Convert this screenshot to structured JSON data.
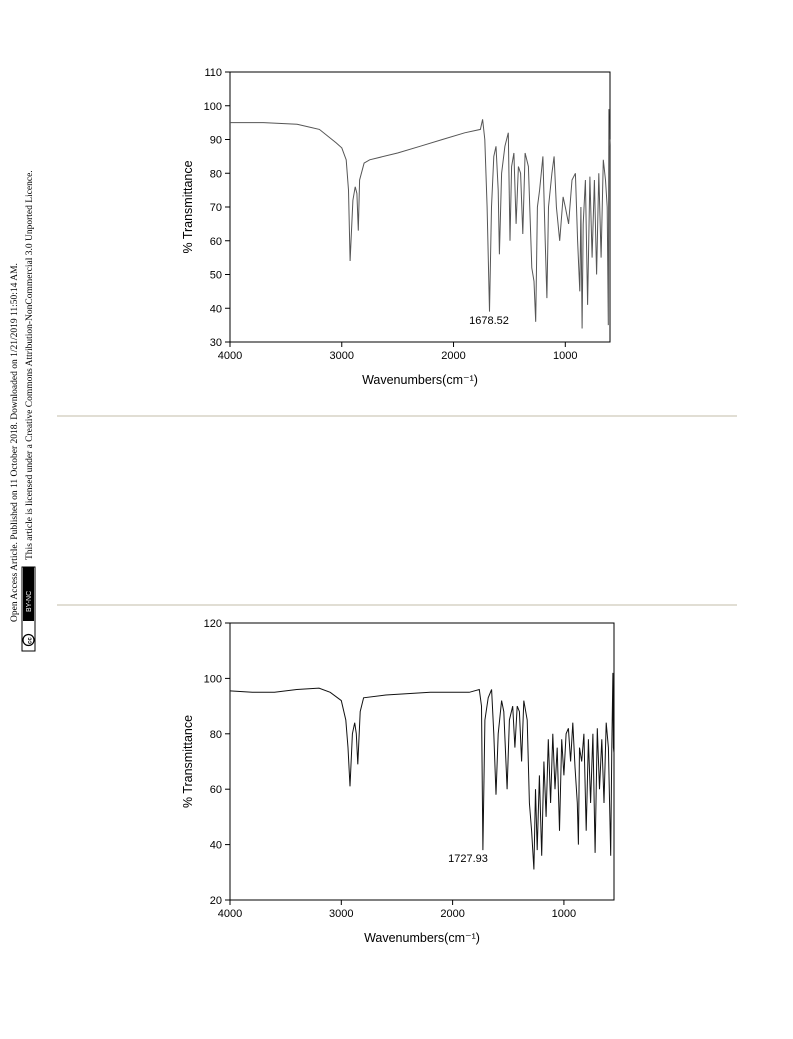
{
  "sidebar": {
    "line1": "Open Access Article. Published on 11 October 2018. Downloaded on 1/21/2019 11:50:14 AM.",
    "line2": "This article is licensed under a Creative Commons Attribution-NonCommercial 3.0 Unported Licence.",
    "badge": "BY-NC"
  },
  "chart_data": [
    {
      "type": "line",
      "xlabel": "Wavenumbers(cm⁻¹)",
      "ylabel": "% Transmittance",
      "annotation": "1678.52",
      "color": "#555555",
      "xlim": [
        4000,
        600
      ],
      "xticks": [
        4000,
        3000,
        2000,
        1000
      ],
      "ylim": [
        30,
        110
      ],
      "yticks": [
        30,
        40,
        50,
        60,
        70,
        80,
        90,
        100,
        110
      ],
      "x": [
        4000,
        3700,
        3400,
        3200,
        3050,
        3000,
        2960,
        2940,
        2925,
        2900,
        2880,
        2865,
        2852,
        2840,
        2800,
        2750,
        2500,
        2300,
        2100,
        1900,
        1760,
        1740,
        1720,
        1700,
        1678.52,
        1660,
        1640,
        1620,
        1600,
        1590,
        1570,
        1540,
        1510,
        1495,
        1480,
        1460,
        1440,
        1420,
        1400,
        1380,
        1360,
        1330,
        1300,
        1280,
        1265,
        1250,
        1230,
        1200,
        1180,
        1165,
        1150,
        1120,
        1100,
        1080,
        1050,
        1020,
        1000,
        970,
        940,
        910,
        890,
        870,
        860,
        850,
        840,
        820,
        800,
        780,
        760,
        740,
        720,
        700,
        680,
        660,
        640,
        625,
        615,
        610,
        605,
        600
      ],
      "values": [
        95,
        95,
        94.5,
        93,
        89,
        87.5,
        84,
        75,
        54,
        72,
        76,
        74,
        63,
        78,
        83,
        84,
        86,
        88,
        90,
        92,
        93,
        96,
        90,
        70,
        39,
        70,
        85,
        88,
        75,
        56,
        80,
        88,
        92,
        60,
        82,
        86,
        65,
        82,
        80,
        62,
        86,
        82,
        52,
        48,
        36,
        70,
        75,
        85,
        60,
        43,
        70,
        80,
        85,
        70,
        60,
        73,
        70,
        65,
        78,
        80,
        60,
        45,
        70,
        34,
        65,
        78,
        41,
        79,
        55,
        78,
        50,
        80,
        55,
        84,
        78,
        70,
        35,
        99,
        88,
        90
      ]
    },
    {
      "type": "line",
      "xlabel": "Wavenumbers(cm⁻¹)",
      "ylabel": "% Transmittance",
      "annotation": "1727.93",
      "color": "#111111",
      "xlim": [
        4000,
        550
      ],
      "xticks": [
        4000,
        3000,
        2000,
        1000
      ],
      "ylim": [
        20,
        120
      ],
      "yticks": [
        20,
        40,
        60,
        80,
        100,
        120
      ],
      "x": [
        4000,
        3800,
        3600,
        3400,
        3200,
        3100,
        3000,
        2960,
        2940,
        2922,
        2900,
        2880,
        2865,
        2852,
        2830,
        2800,
        2600,
        2400,
        2200,
        2000,
        1850,
        1760,
        1740,
        1727.93,
        1710,
        1680,
        1650,
        1630,
        1610,
        1590,
        1560,
        1540,
        1510,
        1490,
        1460,
        1440,
        1420,
        1400,
        1380,
        1360,
        1330,
        1310,
        1290,
        1270,
        1255,
        1240,
        1220,
        1200,
        1180,
        1160,
        1140,
        1120,
        1100,
        1080,
        1060,
        1040,
        1020,
        1000,
        980,
        960,
        940,
        920,
        900,
        880,
        870,
        860,
        840,
        820,
        800,
        780,
        760,
        740,
        720,
        700,
        680,
        660,
        640,
        620,
        600,
        580,
        570,
        560,
        555,
        550
      ],
      "values": [
        95.5,
        95,
        95,
        96,
        96.5,
        95,
        92,
        85,
        75,
        61,
        80,
        84,
        80,
        69,
        88,
        93,
        94,
        94.5,
        95,
        95,
        95,
        96,
        90,
        38,
        85,
        93,
        96,
        80,
        58,
        80,
        92,
        88,
        60,
        85,
        90,
        75,
        90,
        88,
        70,
        92,
        85,
        55,
        45,
        31,
        60,
        38,
        65,
        36,
        70,
        50,
        78,
        55,
        80,
        60,
        75,
        45,
        78,
        65,
        80,
        82,
        70,
        84,
        68,
        55,
        40,
        75,
        70,
        80,
        45,
        78,
        55,
        80,
        37,
        82,
        60,
        78,
        55,
        84,
        75,
        36,
        75,
        102,
        75,
        73
      ]
    }
  ]
}
